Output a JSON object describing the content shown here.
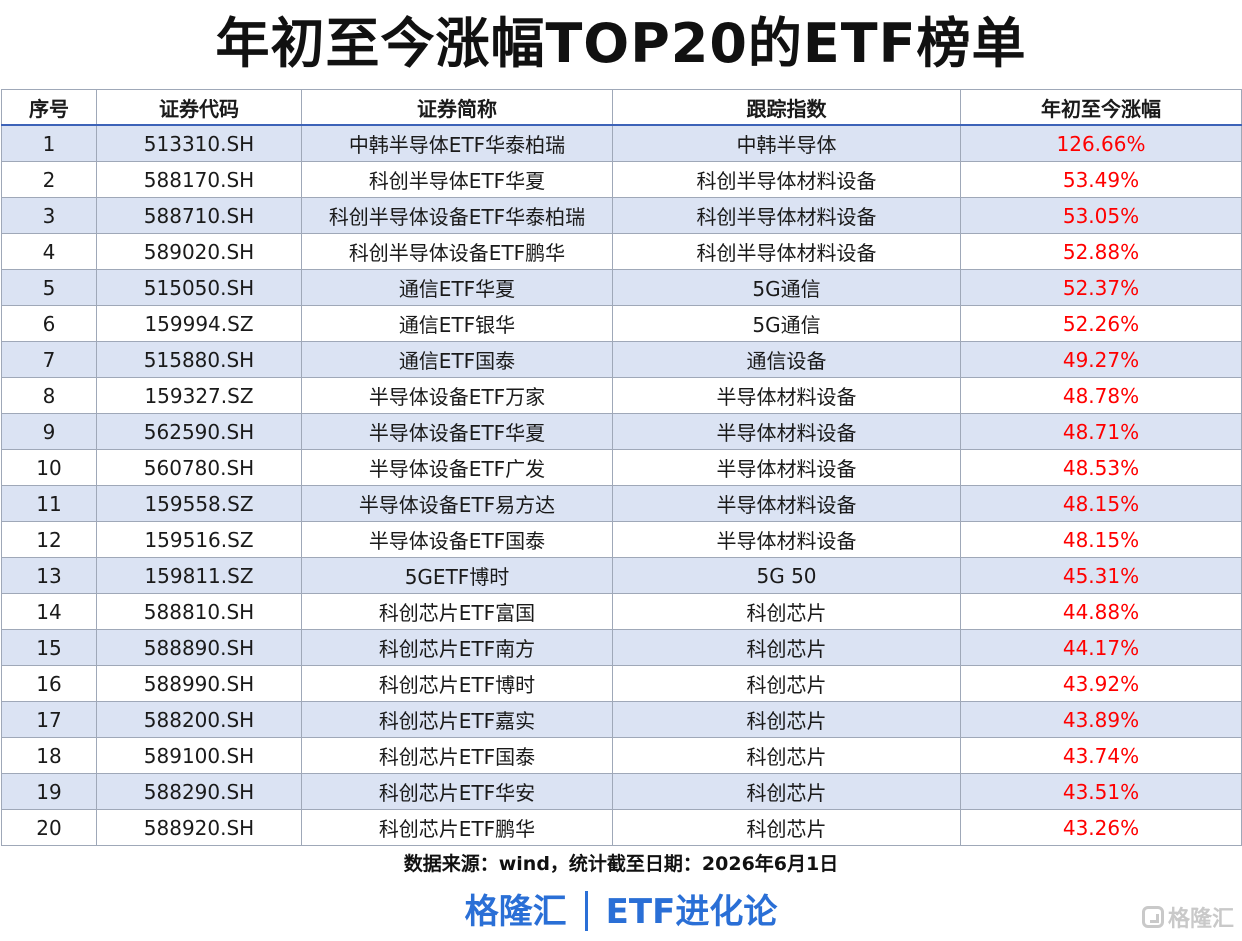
{
  "title": "年初至今涨幅TOP20的ETF榜单",
  "columns": [
    "序号",
    "证券代码",
    "证券简称",
    "跟踪指数",
    "年初至今涨幅"
  ],
  "rows": [
    {
      "no": "1",
      "code": "513310.SH",
      "name": "中韩半导体ETF华泰柏瑞",
      "index": "中韩半导体",
      "gain": "126.66%"
    },
    {
      "no": "2",
      "code": "588170.SH",
      "name": "科创半导体ETF华夏",
      "index": "科创半导体材料设备",
      "gain": "53.49%"
    },
    {
      "no": "3",
      "code": "588710.SH",
      "name": "科创半导体设备ETF华泰柏瑞",
      "index": "科创半导体材料设备",
      "gain": "53.05%"
    },
    {
      "no": "4",
      "code": "589020.SH",
      "name": "科创半导体设备ETF鹏华",
      "index": "科创半导体材料设备",
      "gain": "52.88%"
    },
    {
      "no": "5",
      "code": "515050.SH",
      "name": "通信ETF华夏",
      "index": "5G通信",
      "gain": "52.37%"
    },
    {
      "no": "6",
      "code": "159994.SZ",
      "name": "通信ETF银华",
      "index": "5G通信",
      "gain": "52.26%"
    },
    {
      "no": "7",
      "code": "515880.SH",
      "name": "通信ETF国泰",
      "index": "通信设备",
      "gain": "49.27%"
    },
    {
      "no": "8",
      "code": "159327.SZ",
      "name": "半导体设备ETF万家",
      "index": "半导体材料设备",
      "gain": "48.78%"
    },
    {
      "no": "9",
      "code": "562590.SH",
      "name": "半导体设备ETF华夏",
      "index": "半导体材料设备",
      "gain": "48.71%"
    },
    {
      "no": "10",
      "code": "560780.SH",
      "name": "半导体设备ETF广发",
      "index": "半导体材料设备",
      "gain": "48.53%"
    },
    {
      "no": "11",
      "code": "159558.SZ",
      "name": "半导体设备ETF易方达",
      "index": "半导体材料设备",
      "gain": "48.15%"
    },
    {
      "no": "12",
      "code": "159516.SZ",
      "name": "半导体设备ETF国泰",
      "index": "半导体材料设备",
      "gain": "48.15%"
    },
    {
      "no": "13",
      "code": "159811.SZ",
      "name": "5GETF博时",
      "index": "5G 50",
      "gain": "45.31%"
    },
    {
      "no": "14",
      "code": "588810.SH",
      "name": "科创芯片ETF富国",
      "index": "科创芯片",
      "gain": "44.88%"
    },
    {
      "no": "15",
      "code": "588890.SH",
      "name": "科创芯片ETF南方",
      "index": "科创芯片",
      "gain": "44.17%"
    },
    {
      "no": "16",
      "code": "588990.SH",
      "name": "科创芯片ETF博时",
      "index": "科创芯片",
      "gain": "43.92%"
    },
    {
      "no": "17",
      "code": "588200.SH",
      "name": "科创芯片ETF嘉实",
      "index": "科创芯片",
      "gain": "43.89%"
    },
    {
      "no": "18",
      "code": "589100.SH",
      "name": "科创芯片ETF国泰",
      "index": "科创芯片",
      "gain": "43.74%"
    },
    {
      "no": "19",
      "code": "588290.SH",
      "name": "科创芯片ETF华安",
      "index": "科创芯片",
      "gain": "43.51%"
    },
    {
      "no": "20",
      "code": "588920.SH",
      "name": "科创芯片ETF鹏华",
      "index": "科创芯片",
      "gain": "43.26%"
    }
  ],
  "source": "数据来源：wind，统计截至日期：2026年6月1日",
  "brand": {
    "left": "格隆汇",
    "right": "ETF进化论"
  },
  "watermark": "格隆汇",
  "colors": {
    "gain": "#ff0000",
    "row_shade": "#dbe3f3",
    "brand": "#2a6fd6"
  }
}
